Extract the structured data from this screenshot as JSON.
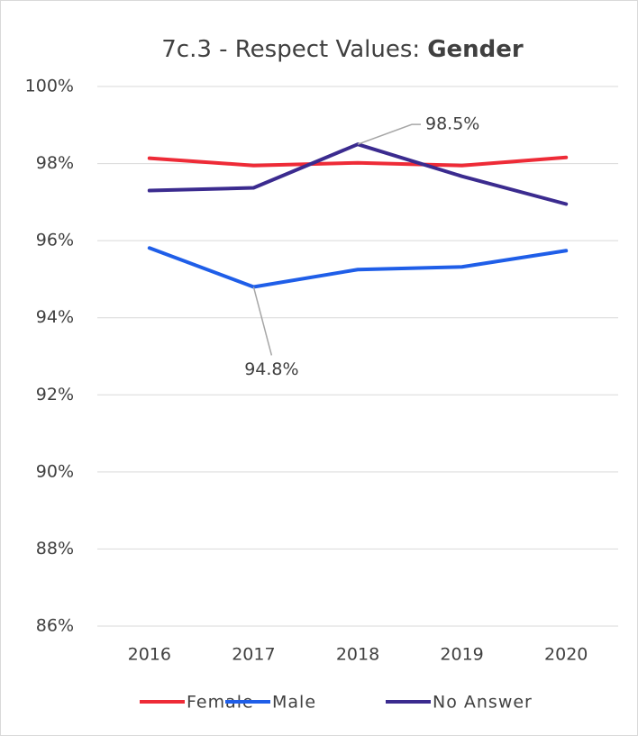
{
  "chart_data": {
    "type": "line",
    "title": "7c.3 - Respect Values:",
    "title_bold": "Gender",
    "categories": [
      "2016",
      "2017",
      "2018",
      "2019",
      "2020"
    ],
    "series": [
      {
        "name": "Female",
        "color": "#ee2b37",
        "values": [
          98.14,
          97.95,
          98.02,
          97.95,
          98.16
        ]
      },
      {
        "name": "Male",
        "color": "#1f5ee8",
        "values": [
          95.81,
          94.8,
          95.25,
          95.32,
          95.74
        ],
        "value_labels": [
          null,
          "94.8%",
          null,
          null,
          null
        ]
      },
      {
        "name": "No Answer",
        "color": "#3b2b8f",
        "values": [
          97.3,
          97.37,
          98.5,
          97.67,
          96.95
        ],
        "value_labels": [
          null,
          null,
          "98.5%",
          null,
          null
        ]
      }
    ],
    "ylim": [
      86,
      100
    ],
    "yticks": [
      {
        "value": 86,
        "label": "86%"
      },
      {
        "value": 88,
        "label": "88%"
      },
      {
        "value": 90,
        "label": "90%"
      },
      {
        "value": 92,
        "label": "92%"
      },
      {
        "value": 94,
        "label": "94%"
      },
      {
        "value": 96,
        "label": "96%"
      },
      {
        "value": 98,
        "label": "98%"
      },
      {
        "value": 100,
        "label": "100%"
      }
    ],
    "grid": true,
    "legend": "bottom"
  }
}
